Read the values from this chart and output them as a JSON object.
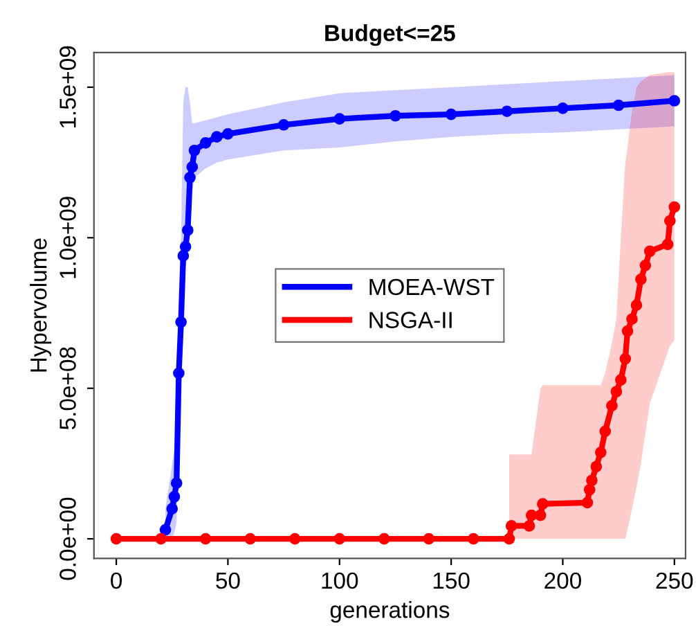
{
  "chart_data": {
    "type": "line",
    "title": "Budget<=25",
    "xlabel": "generations",
    "ylabel": "Hypervolume",
    "xlim": [
      -10,
      255
    ],
    "xticks": [
      0,
      50,
      100,
      150,
      200,
      250
    ],
    "ylim": [
      -65000000.0,
      1615000000.0
    ],
    "yticks": [
      {
        "value": 0,
        "label": "0.0e+00"
      },
      {
        "value": 500000000.0,
        "label": "5.0e+08"
      },
      {
        "value": 1000000000.0,
        "label": "1.0e+09"
      },
      {
        "value": 1500000000.0,
        "label": "1.5e+09"
      }
    ],
    "grid": false,
    "legend": "center",
    "marker": "circle",
    "line_style": "solid",
    "series": [
      {
        "name": "MOEA-WST",
        "color": "#0000ff",
        "x": [
          22,
          25,
          26,
          27,
          28,
          29,
          30,
          31,
          32,
          33,
          34,
          35,
          40,
          45,
          50,
          75,
          100,
          125,
          150,
          175,
          200,
          225,
          250
        ],
        "values": [
          30000000.0,
          100000000.0,
          140000000.0,
          185000000.0,
          550000000.0,
          720000000.0,
          940000000.0,
          970000000.0,
          1025000000.0,
          1200000000.0,
          1235000000.0,
          1290000000.0,
          1315000000.0,
          1335000000.0,
          1345000000.0,
          1375000000.0,
          1395000000.0,
          1405000000.0,
          1410000000.0,
          1420000000.0,
          1430000000.0,
          1440000000.0,
          1455000000.0
        ],
        "lower": [
          0,
          0,
          20000000.0,
          50000000.0,
          400000000.0,
          600000000.0,
          850000000.0,
          900000000.0,
          950000000.0,
          1100000000.0,
          1150000000.0,
          1200000000.0,
          1230000000.0,
          1250000000.0,
          1260000000.0,
          1290000000.0,
          1300000000.0,
          1320000000.0,
          1335000000.0,
          1345000000.0,
          1350000000.0,
          1360000000.0,
          1370000000.0
        ],
        "upper": [
          100000000.0,
          250000000.0,
          300000000.0,
          500000000.0,
          800000000.0,
          1000000000.0,
          1450000000.0,
          1500000000.0,
          1500000000.0,
          1450000000.0,
          1380000000.0,
          1380000000.0,
          1390000000.0,
          1400000000.0,
          1410000000.0,
          1450000000.0,
          1480000000.0,
          1490000000.0,
          1500000000.0,
          1510000000.0,
          1520000000.0,
          1530000000.0,
          1540000000.0
        ]
      },
      {
        "name": "NSGA-II",
        "color": "#ff0000",
        "x": [
          0,
          20,
          40,
          60,
          80,
          100,
          120,
          140,
          160,
          176,
          177,
          185,
          186,
          190,
          191,
          211,
          212,
          213,
          215,
          217,
          219,
          222,
          224,
          226,
          228,
          229,
          231,
          233,
          235,
          237,
          239,
          247,
          248,
          250
        ],
        "values": [
          0,
          0,
          0,
          0,
          0,
          0,
          0,
          0,
          0,
          0,
          43000000.0,
          43000000.0,
          78000000.0,
          78000000.0,
          116000000.0,
          120000000.0,
          163000000.0,
          194000000.0,
          240000000.0,
          287000000.0,
          357000000.0,
          442000000.0,
          489000000.0,
          528000000.0,
          598000000.0,
          690000000.0,
          730000000.0,
          776000000.0,
          862000000.0,
          908000000.0,
          955000000.0,
          978000000.0,
          1056000000.0,
          1102000000.0
        ],
        "lower": [
          null,
          null,
          null,
          null,
          null,
          null,
          null,
          null,
          null,
          0,
          0,
          0,
          0,
          0,
          0,
          0,
          0,
          0,
          0,
          0,
          0,
          0,
          0,
          0,
          0,
          30000000.0,
          100000000.0,
          170000000.0,
          250000000.0,
          350000000.0,
          450000000.0,
          620000000.0,
          640000000.0,
          660000000.0
        ],
        "upper": [
          null,
          null,
          null,
          null,
          null,
          null,
          null,
          null,
          null,
          280000000.0,
          280000000.0,
          280000000.0,
          280000000.0,
          500000000.0,
          510000000.0,
          510000000.0,
          510000000.0,
          510000000.0,
          510000000.0,
          510000000.0,
          550000000.0,
          650000000.0,
          730000000.0,
          1000000000.0,
          1250000000.0,
          1300000000.0,
          1420000000.0,
          1500000000.0,
          1520000000.0,
          1530000000.0,
          1540000000.0,
          1550000000.0,
          1550000000.0,
          1550000000.0
        ]
      }
    ]
  }
}
